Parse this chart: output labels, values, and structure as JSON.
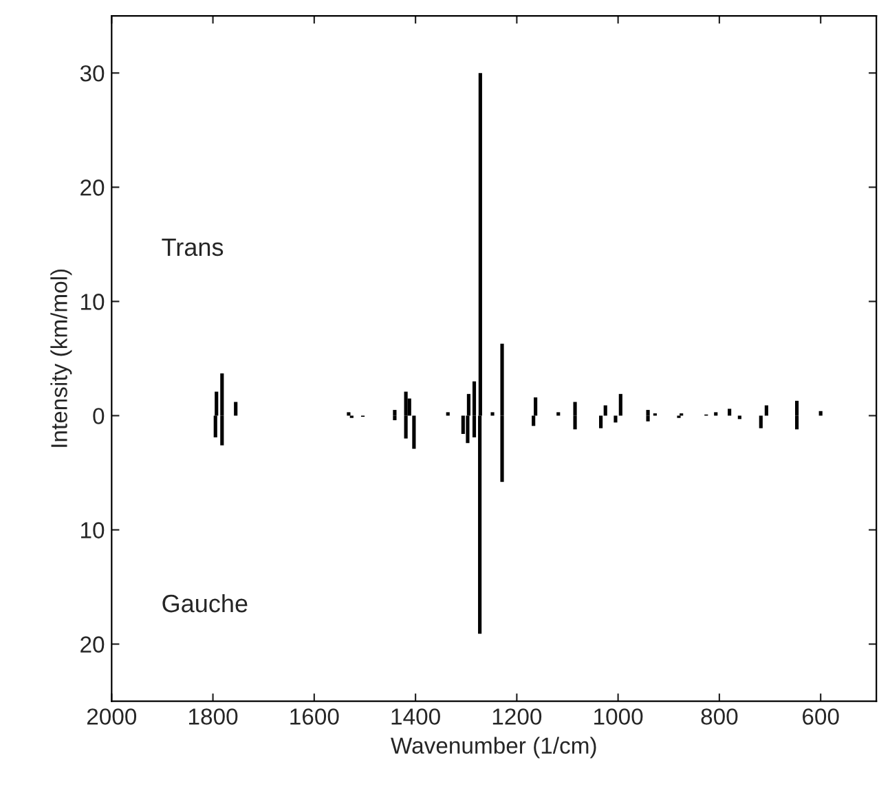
{
  "chart_data": {
    "type": "bar",
    "xlabel": "Wavenumber (1/cm)",
    "ylabel": "Intensity (km/mol)",
    "annotations": [
      "Trans",
      "Gauche"
    ],
    "series": [
      {
        "color": "#000000",
        "x": [
          1793,
          1782,
          1755,
          1532,
          1441,
          1419,
          1412,
          1336,
          1295,
          1284,
          1272,
          1248,
          1229,
          1163,
          1118,
          1085,
          1025,
          995,
          941,
          927,
          875,
          826,
          807,
          780,
          707,
          647,
          600
        ],
        "values": [
          2.1,
          3.7,
          1.2,
          0.3,
          0.5,
          2.1,
          1.5,
          0.3,
          1.9,
          3.0,
          30,
          0.3,
          6.3,
          1.6,
          0.3,
          1.2,
          0.9,
          1.9,
          0.5,
          0.2,
          0.2,
          0.1,
          0.3,
          0.6,
          0.9,
          1.3,
          0.4
        ]
      },
      {
        "color": "#000000",
        "x": [
          1795,
          1782,
          1526,
          1504,
          1441,
          1419,
          1403,
          1306,
          1297,
          1284,
          1273,
          1229,
          1167,
          1085,
          1034,
          1005,
          941,
          880,
          760,
          718,
          647
        ],
        "values": [
          -1.9,
          -2.6,
          -0.2,
          -0.1,
          -0.4,
          -2.0,
          -2.9,
          -1.6,
          -2.4,
          -1.9,
          -19.1,
          -5.8,
          -0.9,
          -1.2,
          -1.1,
          -0.6,
          -0.5,
          -0.2,
          -0.3,
          -1.1,
          -1.2
        ]
      }
    ],
    "xlim": [
      2000,
      490
    ],
    "xticks": [
      2000,
      1800,
      1600,
      1400,
      1200,
      1000,
      800,
      600
    ],
    "ylim": [
      -25,
      35
    ],
    "yticks": [
      {
        "value": -20,
        "label": "20"
      },
      {
        "value": -10,
        "label": "10"
      },
      0,
      10,
      20,
      30
    ],
    "grid": false,
    "legend": false
  }
}
